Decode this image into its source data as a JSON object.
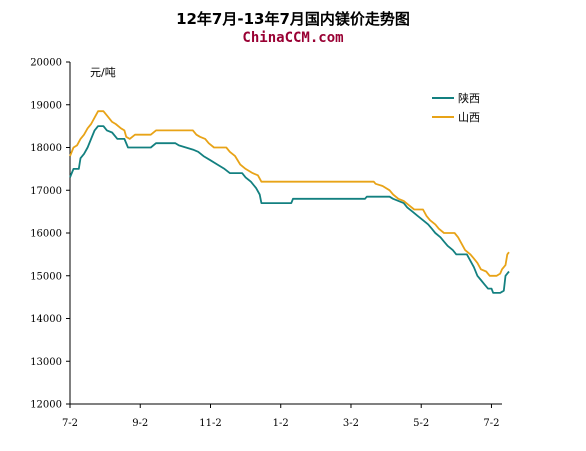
{
  "chart_data": {
    "type": "line",
    "title": "12年7月-13年7月国内镁价走势图",
    "subtitle": "ChinaCCM.com",
    "ylabel": "元/吨",
    "ylim": [
      12000,
      20000
    ],
    "yticks": [
      12000,
      13000,
      14000,
      15000,
      16000,
      17000,
      18000,
      19000,
      20000
    ],
    "xlim": [
      0,
      12.3
    ],
    "xticks": [
      {
        "label": "7-2",
        "x": 0
      },
      {
        "label": "9-2",
        "x": 2
      },
      {
        "label": "11-2",
        "x": 4
      },
      {
        "label": "1-2",
        "x": 6
      },
      {
        "label": "3-2",
        "x": 8
      },
      {
        "label": "5-2",
        "x": 10
      },
      {
        "label": "7-2",
        "x": 12
      }
    ],
    "grid": false,
    "legend_position": "top-right",
    "series": [
      {
        "name": "陕西",
        "color": "#138080",
        "points": [
          [
            0.0,
            17300
          ],
          [
            0.1,
            17500
          ],
          [
            0.25,
            17500
          ],
          [
            0.3,
            17750
          ],
          [
            0.4,
            17850
          ],
          [
            0.5,
            18000
          ],
          [
            0.6,
            18200
          ],
          [
            0.7,
            18400
          ],
          [
            0.8,
            18500
          ],
          [
            0.95,
            18500
          ],
          [
            1.05,
            18400
          ],
          [
            1.2,
            18350
          ],
          [
            1.35,
            18200
          ],
          [
            1.55,
            18200
          ],
          [
            1.65,
            18000
          ],
          [
            2.3,
            18000
          ],
          [
            2.45,
            18100
          ],
          [
            3.0,
            18100
          ],
          [
            3.1,
            18050
          ],
          [
            3.3,
            18000
          ],
          [
            3.5,
            17950
          ],
          [
            3.65,
            17900
          ],
          [
            3.8,
            17800
          ],
          [
            4.0,
            17700
          ],
          [
            4.2,
            17600
          ],
          [
            4.4,
            17500
          ],
          [
            4.55,
            17400
          ],
          [
            4.9,
            17400
          ],
          [
            5.0,
            17300
          ],
          [
            5.15,
            17200
          ],
          [
            5.3,
            17050
          ],
          [
            5.4,
            16900
          ],
          [
            5.45,
            16700
          ],
          [
            6.3,
            16700
          ],
          [
            6.35,
            16800
          ],
          [
            8.4,
            16800
          ],
          [
            8.45,
            16850
          ],
          [
            9.1,
            16850
          ],
          [
            9.2,
            16800
          ],
          [
            9.35,
            16750
          ],
          [
            9.5,
            16700
          ],
          [
            9.6,
            16600
          ],
          [
            9.75,
            16500
          ],
          [
            9.9,
            16400
          ],
          [
            10.05,
            16300
          ],
          [
            10.2,
            16200
          ],
          [
            10.3,
            16100
          ],
          [
            10.4,
            16000
          ],
          [
            10.55,
            15900
          ],
          [
            10.65,
            15800
          ],
          [
            10.75,
            15700
          ],
          [
            10.9,
            15600
          ],
          [
            11.0,
            15500
          ],
          [
            11.3,
            15500
          ],
          [
            11.4,
            15350
          ],
          [
            11.5,
            15200
          ],
          [
            11.6,
            15000
          ],
          [
            11.7,
            14900
          ],
          [
            11.8,
            14800
          ],
          [
            11.9,
            14700
          ],
          [
            12.0,
            14700
          ],
          [
            12.05,
            14600
          ],
          [
            12.25,
            14600
          ],
          [
            12.35,
            14650
          ],
          [
            12.4,
            15000
          ],
          [
            12.5,
            15100
          ]
        ]
      },
      {
        "name": "山西",
        "color": "#E8A317",
        "points": [
          [
            0.0,
            17800
          ],
          [
            0.1,
            18000
          ],
          [
            0.2,
            18050
          ],
          [
            0.3,
            18200
          ],
          [
            0.4,
            18300
          ],
          [
            0.5,
            18450
          ],
          [
            0.6,
            18550
          ],
          [
            0.7,
            18700
          ],
          [
            0.8,
            18850
          ],
          [
            0.95,
            18850
          ],
          [
            1.05,
            18750
          ],
          [
            1.2,
            18600
          ],
          [
            1.3,
            18550
          ],
          [
            1.45,
            18450
          ],
          [
            1.55,
            18400
          ],
          [
            1.6,
            18250
          ],
          [
            1.7,
            18200
          ],
          [
            1.85,
            18300
          ],
          [
            2.3,
            18300
          ],
          [
            2.45,
            18400
          ],
          [
            3.5,
            18400
          ],
          [
            3.6,
            18300
          ],
          [
            3.7,
            18250
          ],
          [
            3.85,
            18200
          ],
          [
            3.95,
            18100
          ],
          [
            4.1,
            18000
          ],
          [
            4.45,
            18000
          ],
          [
            4.55,
            17900
          ],
          [
            4.7,
            17800
          ],
          [
            4.85,
            17600
          ],
          [
            5.0,
            17500
          ],
          [
            5.2,
            17400
          ],
          [
            5.35,
            17350
          ],
          [
            5.45,
            17200
          ],
          [
            8.65,
            17200
          ],
          [
            8.7,
            17150
          ],
          [
            8.9,
            17100
          ],
          [
            9.1,
            17000
          ],
          [
            9.2,
            16900
          ],
          [
            9.35,
            16800
          ],
          [
            9.5,
            16750
          ],
          [
            9.65,
            16650
          ],
          [
            9.8,
            16550
          ],
          [
            10.05,
            16550
          ],
          [
            10.15,
            16400
          ],
          [
            10.25,
            16300
          ],
          [
            10.4,
            16200
          ],
          [
            10.5,
            16100
          ],
          [
            10.65,
            16000
          ],
          [
            10.95,
            16000
          ],
          [
            11.05,
            15900
          ],
          [
            11.15,
            15750
          ],
          [
            11.25,
            15600
          ],
          [
            11.4,
            15500
          ],
          [
            11.5,
            15400
          ],
          [
            11.6,
            15300
          ],
          [
            11.7,
            15150
          ],
          [
            11.85,
            15100
          ],
          [
            11.95,
            15000
          ],
          [
            12.15,
            15000
          ],
          [
            12.25,
            15050
          ],
          [
            12.3,
            15150
          ],
          [
            12.4,
            15250
          ],
          [
            12.45,
            15500
          ],
          [
            12.5,
            15550
          ]
        ]
      }
    ]
  }
}
